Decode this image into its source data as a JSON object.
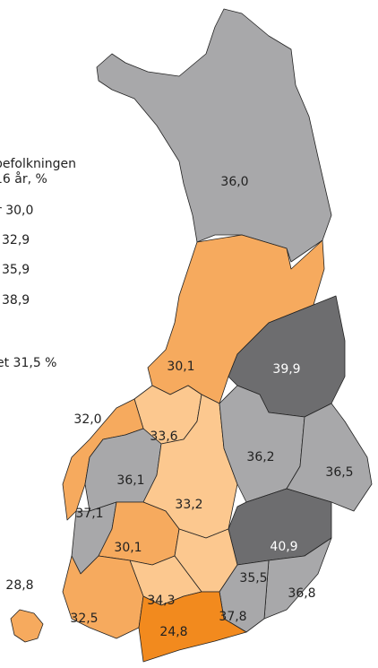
{
  "legend": {
    "title": [
      "befolkningen",
      "16 år, %"
    ],
    "items": [
      "r 30,0",
      "32,9",
      "35,9",
      "38,9"
    ],
    "note": "et 31,5 %"
  },
  "regions": [
    {
      "label": "36,0",
      "color": "#a8a8aa"
    },
    {
      "label": "30,1",
      "color": "#f6aa5e"
    },
    {
      "label": "39,9",
      "color": "#6d6d6f"
    },
    {
      "label": "33,6",
      "color": "#fcc88f"
    },
    {
      "label": "32,0",
      "color": "#f6aa5e"
    },
    {
      "label": "36,1",
      "color": "#a8a8aa"
    },
    {
      "label": "33,2",
      "color": "#fcc88f"
    },
    {
      "label": "36,2",
      "color": "#a8a8aa"
    },
    {
      "label": "36,5",
      "color": "#a8a8aa"
    },
    {
      "label": "40,9",
      "color": "#6d6d6f"
    },
    {
      "label": "37,1",
      "color": "#a8a8aa"
    },
    {
      "label": "30,1",
      "color": "#f6aa5e"
    },
    {
      "label": "35,5",
      "color": "#fcc88f"
    },
    {
      "label": "34,3",
      "color": "#fcc88f"
    },
    {
      "label": "36,8",
      "color": "#a8a8aa"
    },
    {
      "label": "37,8",
      "color": "#a8a8aa"
    },
    {
      "label": "32,5",
      "color": "#f6aa5e"
    },
    {
      "label": "24,8",
      "color": "#f28a1e"
    },
    {
      "label": "28,8",
      "color": "#f6aa5e"
    }
  ]
}
